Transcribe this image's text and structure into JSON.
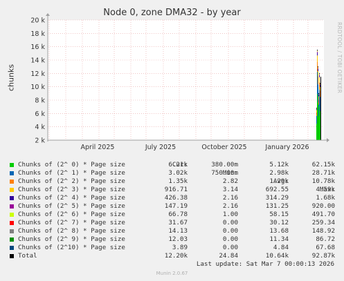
{
  "chart_data": {
    "type": "area",
    "title": "Node 0, zone DMA32 - by year",
    "ylabel": "chunks",
    "ylim": [
      2000,
      20000
    ],
    "y_ticks": [
      2000,
      4000,
      6000,
      8000,
      10000,
      12000,
      14000,
      16000,
      18000,
      20000
    ],
    "y_tick_labels": [
      "2 k",
      "4 k",
      "6 k",
      "8 k",
      "10 k",
      "12 k",
      "14 k",
      "16 k",
      "18 k",
      "20 k"
    ],
    "x_tick_labels": [
      "April 2025",
      "July 2025",
      "October 2025",
      "January 2026"
    ],
    "grid": true,
    "series": [
      {
        "name": "Chunks of (2^ 0) * Page size",
        "color": "#00cc00"
      },
      {
        "name": "Chunks of (2^ 1) * Page size",
        "color": "#0066b3"
      },
      {
        "name": "Chunks of (2^ 2) * Page size",
        "color": "#ff8000"
      },
      {
        "name": "Chunks of (2^ 3) * Page size",
        "color": "#ffcc00"
      },
      {
        "name": "Chunks of (2^ 4) * Page size",
        "color": "#330099"
      },
      {
        "name": "Chunks of (2^ 5) * Page size",
        "color": "#990099"
      },
      {
        "name": "Chunks of (2^ 6) * Page size",
        "color": "#ccff00"
      },
      {
        "name": "Chunks of (2^ 7) * Page size",
        "color": "#ff0000"
      },
      {
        "name": "Chunks of (2^ 8) * Page size",
        "color": "#808080"
      },
      {
        "name": "Chunks of (2^ 9) * Page size",
        "color": "#008f00"
      },
      {
        "name": "Chunks of (2^10) * Page size",
        "color": "#00487d"
      },
      {
        "name": "Total",
        "color": "#000000"
      }
    ],
    "spike_totals": [
      6800,
      15500,
      13000,
      9000,
      12000,
      10500
    ]
  },
  "legend": {
    "headers": {
      "cur": "Cur:",
      "min": "Min:",
      "avg": "Avg:",
      "max": "Max:"
    },
    "rows": [
      {
        "name": "Chunks of (2^ 0) * Page size",
        "color": "#00cc00",
        "cur": "6.21k",
        "min": "380.00m",
        "avg": "5.12k",
        "max": "62.15k"
      },
      {
        "name": "Chunks of (2^ 1) * Page size",
        "color": "#0066b3",
        "cur": "3.02k",
        "min": "750.00m",
        "avg": "2.98k",
        "max": "28.71k"
      },
      {
        "name": "Chunks of (2^ 2) * Page size",
        "color": "#ff8000",
        "cur": "1.35k",
        "min": "2.82",
        "avg": "1.29k",
        "max": "10.78k"
      },
      {
        "name": "Chunks of (2^ 3) * Page size",
        "color": "#ffcc00",
        "cur": "916.71",
        "min": "3.14",
        "avg": "692.55",
        "max": "4.59k"
      },
      {
        "name": "Chunks of (2^ 4) * Page size",
        "color": "#330099",
        "cur": "426.38",
        "min": "2.16",
        "avg": "314.29",
        "max": "1.68k"
      },
      {
        "name": "Chunks of (2^ 5) * Page size",
        "color": "#990099",
        "cur": "147.19",
        "min": "2.16",
        "avg": "131.25",
        "max": "920.00"
      },
      {
        "name": "Chunks of (2^ 6) * Page size",
        "color": "#ccff00",
        "cur": "66.78",
        "min": "1.00",
        "avg": "58.15",
        "max": "491.70"
      },
      {
        "name": "Chunks of (2^ 7) * Page size",
        "color": "#ff0000",
        "cur": "31.67",
        "min": "0.00",
        "avg": "30.12",
        "max": "259.34"
      },
      {
        "name": "Chunks of (2^ 8) * Page size",
        "color": "#808080",
        "cur": "14.13",
        "min": "0.00",
        "avg": "13.68",
        "max": "148.92"
      },
      {
        "name": "Chunks of (2^ 9) * Page size",
        "color": "#008f00",
        "cur": "12.03",
        "min": "0.00",
        "avg": "11.34",
        "max": "86.72"
      },
      {
        "name": "Chunks of (2^10) * Page size",
        "color": "#00487d",
        "cur": "3.89",
        "min": "0.00",
        "avg": "4.84",
        "max": "67.68"
      },
      {
        "name": "Total",
        "color": "#000000",
        "cur": "12.20k",
        "min": "24.84",
        "avg": "10.64k",
        "max": "92.87k"
      }
    ]
  },
  "footer": {
    "last_update": "Last update: Sat Mar  7 00:00:13 2026",
    "munin_version": "Munin 2.0.67"
  },
  "side_text": "RRDTOOL / TOBI OETIKER"
}
